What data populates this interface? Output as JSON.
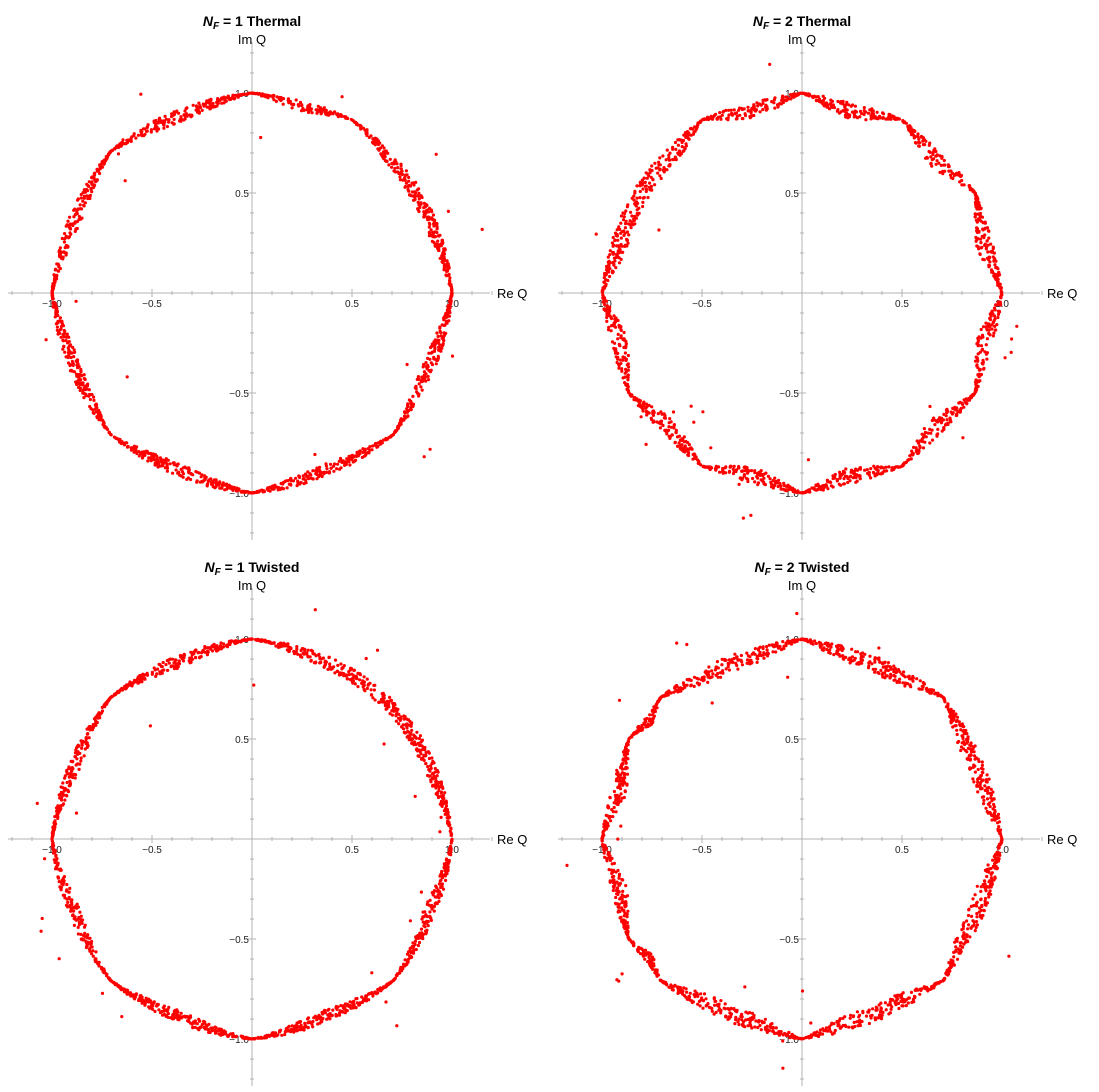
{
  "colors": {
    "points": "#ff0000",
    "axes": "#b3b3b3",
    "text": "#000000"
  },
  "chart_data": [
    {
      "type": "scatter",
      "title": {
        "main": "N",
        "sub": "F",
        "rest": " = 1 Thermal"
      },
      "xlabel": "Re Q",
      "ylabel": "Im Q",
      "xlim": [
        -1.2,
        1.2
      ],
      "ylim": [
        -1.2,
        1.2
      ],
      "x_ticks": [
        "-1.0",
        "-0.5",
        "0.5",
        "1.0"
      ],
      "y_ticks": [
        "1.0",
        "0.5",
        "-0.5",
        "-1.0"
      ],
      "grid": false,
      "series": [
        {
          "description": "points cluster along unit circle with pinch points",
          "ring_radius": 1.0,
          "pinch_angles_deg": [
            0,
            60,
            90,
            135,
            180,
            225,
            270,
            315
          ],
          "spread": 0.06,
          "seed": 11
        }
      ]
    },
    {
      "type": "scatter",
      "title": {
        "main": "N",
        "sub": "F",
        "rest": " = 2 Thermal"
      },
      "xlabel": "Re Q",
      "ylabel": "Im Q",
      "xlim": [
        -1.2,
        1.2
      ],
      "ylim": [
        -1.2,
        1.2
      ],
      "x_ticks": [
        "-1.0",
        "-0.5",
        "0.5",
        "1.0"
      ],
      "y_ticks": [
        "1.0",
        "0.5",
        "-0.5",
        "-1.0"
      ],
      "grid": false,
      "series": [
        {
          "ring_radius": 1.0,
          "pinch_angles_deg": [
            0,
            30,
            60,
            90,
            120,
            180,
            210,
            240,
            270,
            300,
            330
          ],
          "spread": 0.08,
          "seed": 23
        }
      ]
    },
    {
      "type": "scatter",
      "title": {
        "main": "N",
        "sub": "F",
        "rest": " = 1 Twisted"
      },
      "xlabel": "Re Q",
      "ylabel": "Im Q",
      "xlim": [
        -1.2,
        1.2
      ],
      "ylim": [
        -1.2,
        1.2
      ],
      "x_ticks": [
        "-1.0",
        "-0.5",
        "0.5",
        "1.0"
      ],
      "y_ticks": [
        "1.0",
        "0.5",
        "-0.5",
        "-1.0"
      ],
      "grid": false,
      "series": [
        {
          "ring_radius": 1.0,
          "pinch_angles_deg": [
            0,
            90,
            135,
            180,
            225,
            270,
            315
          ],
          "spread": 0.06,
          "seed": 37
        }
      ]
    },
    {
      "type": "scatter",
      "title": {
        "main": "N",
        "sub": "F",
        "rest": " = 2 Twisted"
      },
      "xlabel": "Re Q",
      "ylabel": "Im Q",
      "xlim": [
        -1.2,
        1.2
      ],
      "ylim": [
        -1.2,
        1.2
      ],
      "x_ticks": [
        "-1.0",
        "-0.5",
        "0.5",
        "1.0"
      ],
      "y_ticks": [
        "1.0",
        "0.5",
        "-0.5",
        "-1.0"
      ],
      "grid": false,
      "series": [
        {
          "ring_radius": 1.0,
          "pinch_angles_deg": [
            0,
            45,
            90,
            135,
            150,
            180,
            210,
            225,
            270,
            315
          ],
          "spread": 0.08,
          "seed": 53
        }
      ]
    }
  ]
}
